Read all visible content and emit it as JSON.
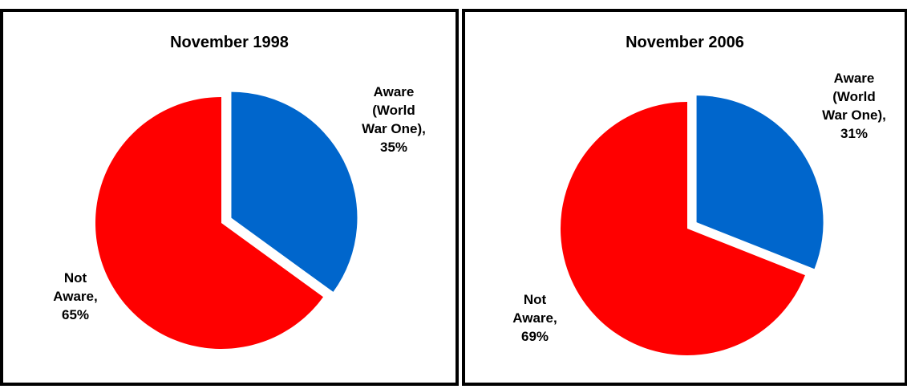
{
  "chart_data": [
    {
      "type": "pie",
      "title": "November 1998",
      "slices": [
        {
          "label_lines": [
            "Aware",
            "(World",
            "War One),",
            "35%"
          ],
          "value": 35,
          "color": "#0066CC",
          "exploded": true
        },
        {
          "label_lines": [
            "Not",
            "Aware,",
            "65%"
          ],
          "value": 65,
          "color": "#FF0000",
          "exploded": false
        }
      ]
    },
    {
      "type": "pie",
      "title": "November 2006",
      "slices": [
        {
          "label_lines": [
            "Aware",
            "(World",
            "War One),",
            "31%"
          ],
          "value": 31,
          "color": "#0066CC",
          "exploded": true
        },
        {
          "label_lines": [
            "Not",
            "Aware,",
            "69%"
          ],
          "value": 69,
          "color": "#FF0000",
          "exploded": false
        }
      ]
    }
  ]
}
